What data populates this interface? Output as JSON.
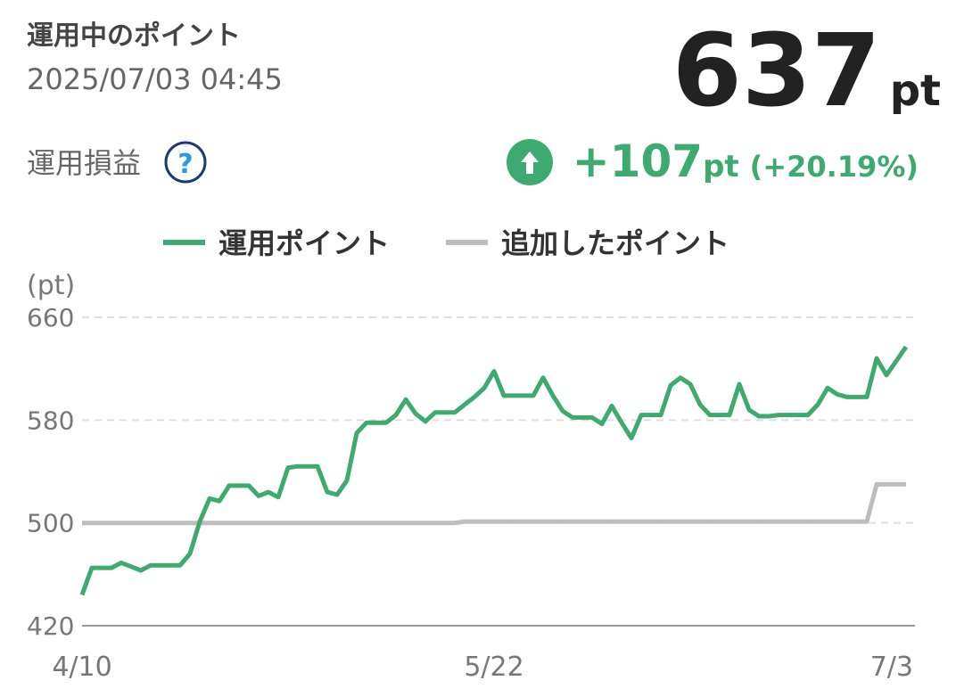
{
  "header": {
    "title": "運用中のポイント",
    "datetime": "2025/07/03 04:45",
    "points": "637",
    "points_unit": "pt",
    "profit_label": "運用損益",
    "help": "?",
    "profit": "+107",
    "profit_unit": "pt",
    "profit_rate": "(+20.19%)"
  },
  "chart_data": {
    "type": "line",
    "y_label": "(pt)",
    "categories": [
      "4/10",
      null,
      null,
      null,
      null,
      null,
      null,
      null,
      null,
      null,
      null,
      null,
      null,
      null,
      null,
      null,
      null,
      null,
      null,
      null,
      null,
      null,
      null,
      null,
      null,
      null,
      null,
      null,
      null,
      null,
      null,
      null,
      null,
      null,
      null,
      null,
      null,
      null,
      null,
      null,
      null,
      null,
      "5/22",
      null,
      null,
      null,
      null,
      null,
      null,
      null,
      null,
      null,
      null,
      null,
      null,
      null,
      null,
      null,
      null,
      null,
      null,
      null,
      null,
      null,
      null,
      null,
      null,
      null,
      null,
      null,
      null,
      null,
      null,
      null,
      null,
      null,
      null,
      null,
      null,
      null,
      null,
      null,
      null,
      null,
      "7/3"
    ],
    "series": [
      {
        "name": "運用ポイント",
        "color": "#3daa6f",
        "values": [
          444,
          465,
          465,
          465,
          469,
          466,
          463,
          467,
          467,
          467,
          467,
          476,
          501,
          519,
          517,
          529,
          529,
          529,
          521,
          524,
          520,
          543,
          544,
          544,
          544,
          524,
          522,
          533,
          570,
          578,
          578,
          578,
          584,
          596,
          585,
          579,
          586,
          586,
          586,
          592,
          598,
          605,
          618,
          599,
          599,
          599,
          599,
          613,
          599,
          587,
          582,
          582,
          582,
          577,
          591,
          578,
          566,
          584,
          584,
          584,
          607,
          613,
          608,
          592,
          584,
          584,
          584,
          608,
          588,
          583,
          583,
          584,
          584,
          584,
          584,
          592,
          605,
          600,
          598,
          598,
          598,
          628,
          615,
          626,
          637
        ]
      },
      {
        "name": "追加したポイント",
        "color": "#bdbdbd",
        "values": [
          500,
          500,
          500,
          500,
          500,
          500,
          500,
          500,
          500,
          500,
          500,
          500,
          500,
          500,
          500,
          500,
          500,
          500,
          500,
          500,
          500,
          500,
          500,
          500,
          500,
          500,
          500,
          500,
          500,
          500,
          500,
          500,
          500,
          500,
          500,
          500,
          500,
          500,
          500,
          501,
          501,
          501,
          501,
          501,
          501,
          501,
          501,
          501,
          501,
          501,
          501,
          501,
          501,
          501,
          501,
          501,
          501,
          501,
          501,
          501,
          501,
          501,
          501,
          501,
          501,
          501,
          501,
          501,
          501,
          501,
          501,
          501,
          501,
          501,
          501,
          501,
          501,
          501,
          501,
          501,
          501,
          530,
          530,
          530,
          530
        ]
      }
    ],
    "ylim": [
      420,
      660
    ],
    "yticks": [
      420,
      500,
      580,
      660
    ],
    "grid": true
  }
}
